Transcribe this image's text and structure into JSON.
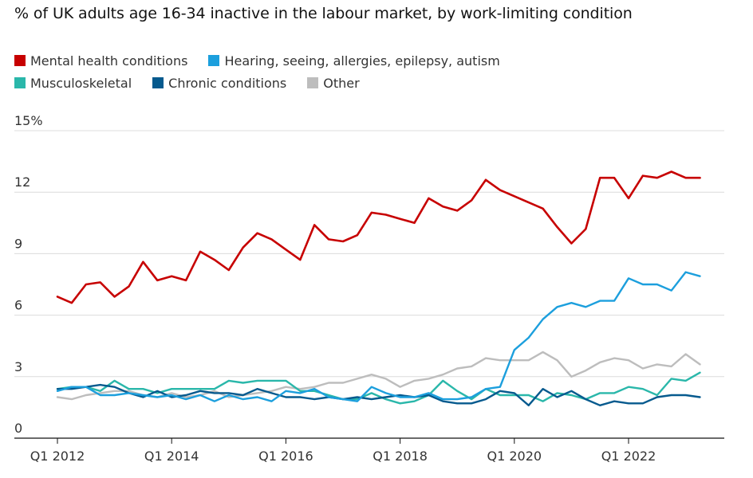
{
  "title": "% of UK adults age 16-34 inactive in the labour market, by work-limiting condition",
  "colors": {
    "mental": "#c70000",
    "hearing": "#1c9fdd",
    "musculoskeletal": "#2ab7aa",
    "chronic": "#065a8e",
    "other": "#bdbdbd",
    "grid": "#dcdcdc",
    "axis": "#121212"
  },
  "chart_data": {
    "type": "line",
    "title": "% of UK adults age 16-34 inactive in the labour market, by work-limiting condition",
    "xlabel": "",
    "ylabel": "",
    "x_tick_labels": [
      "Q1 2012",
      "Q1 2014",
      "Q1 2016",
      "Q1 2018",
      "Q1 2020",
      "Q1 2022"
    ],
    "y_tick_labels": [
      "0",
      "3",
      "6",
      "9",
      "12",
      "15%"
    ],
    "y_ticks": [
      0,
      3,
      6,
      9,
      12,
      15
    ],
    "ylim": [
      0,
      15
    ],
    "x_start": "Q1 2012",
    "x_end": "Q2 2023",
    "grid": "horizontal",
    "legend_position": "top-left",
    "series": [
      {
        "name": "Mental health conditions",
        "color": "#c70000",
        "values": [
          6.9,
          6.6,
          7.5,
          7.6,
          6.9,
          7.4,
          8.6,
          7.7,
          7.9,
          7.7,
          9.1,
          8.7,
          8.2,
          9.3,
          10.0,
          9.7,
          9.2,
          8.7,
          10.4,
          9.7,
          9.6,
          9.9,
          11.0,
          10.9,
          10.7,
          10.5,
          11.7,
          11.3,
          11.1,
          11.6,
          12.6,
          12.1,
          11.8,
          11.5,
          11.2,
          10.3,
          9.5,
          10.2,
          12.7,
          12.7,
          11.7,
          12.8,
          12.7,
          13.0,
          12.7,
          12.7
        ]
      },
      {
        "name": "Hearing, seeing, allergies, epilepsy, autism",
        "color": "#1c9fdd",
        "values": [
          2.3,
          2.5,
          2.5,
          2.1,
          2.1,
          2.2,
          2.1,
          2.0,
          2.1,
          1.9,
          2.1,
          1.8,
          2.1,
          1.9,
          2.0,
          1.8,
          2.3,
          2.2,
          2.4,
          2.0,
          1.9,
          1.8,
          2.5,
          2.2,
          2.0,
          2.0,
          2.2,
          1.9,
          1.9,
          2.0,
          2.4,
          2.5,
          4.3,
          4.9,
          5.8,
          6.4,
          6.6,
          6.4,
          6.7,
          6.7,
          7.8,
          7.5,
          7.5,
          7.2,
          8.1,
          7.9
        ]
      },
      {
        "name": "Musculoskeletal",
        "color": "#2ab7aa",
        "values": [
          2.4,
          2.5,
          2.5,
          2.3,
          2.8,
          2.4,
          2.4,
          2.2,
          2.4,
          2.4,
          2.4,
          2.4,
          2.8,
          2.7,
          2.8,
          2.8,
          2.8,
          2.3,
          2.3,
          2.1,
          1.9,
          1.9,
          2.2,
          1.9,
          1.7,
          1.8,
          2.1,
          2.8,
          2.3,
          1.9,
          2.4,
          2.1,
          2.1,
          2.1,
          1.8,
          2.2,
          2.1,
          1.9,
          2.2,
          2.2,
          2.5,
          2.4,
          2.1,
          2.9,
          2.8,
          3.2
        ]
      },
      {
        "name": "Chronic conditions",
        "color": "#065a8e",
        "values": [
          2.4,
          2.4,
          2.5,
          2.6,
          2.5,
          2.2,
          2.0,
          2.3,
          2.0,
          2.1,
          2.3,
          2.2,
          2.2,
          2.1,
          2.4,
          2.2,
          2.0,
          2.0,
          1.9,
          2.0,
          1.9,
          2.0,
          1.9,
          2.0,
          2.1,
          2.0,
          2.1,
          1.8,
          1.7,
          1.7,
          1.9,
          2.3,
          2.2,
          1.6,
          2.4,
          2.0,
          2.3,
          1.9,
          1.6,
          1.8,
          1.7,
          1.7,
          2.0,
          2.1,
          2.1,
          2.0
        ]
      },
      {
        "name": "Other",
        "color": "#bdbdbd",
        "values": [
          2.0,
          1.9,
          2.1,
          2.2,
          2.3,
          2.3,
          2.1,
          2.0,
          2.2,
          2.0,
          2.1,
          2.3,
          2.0,
          2.1,
          2.2,
          2.3,
          2.5,
          2.4,
          2.5,
          2.7,
          2.7,
          2.9,
          3.1,
          2.9,
          2.5,
          2.8,
          2.9,
          3.1,
          3.4,
          3.5,
          3.9,
          3.8,
          3.8,
          3.8,
          4.2,
          3.8,
          3.0,
          3.3,
          3.7,
          3.9,
          3.8,
          3.4,
          3.6,
          3.5,
          4.1,
          3.6
        ]
      }
    ]
  }
}
